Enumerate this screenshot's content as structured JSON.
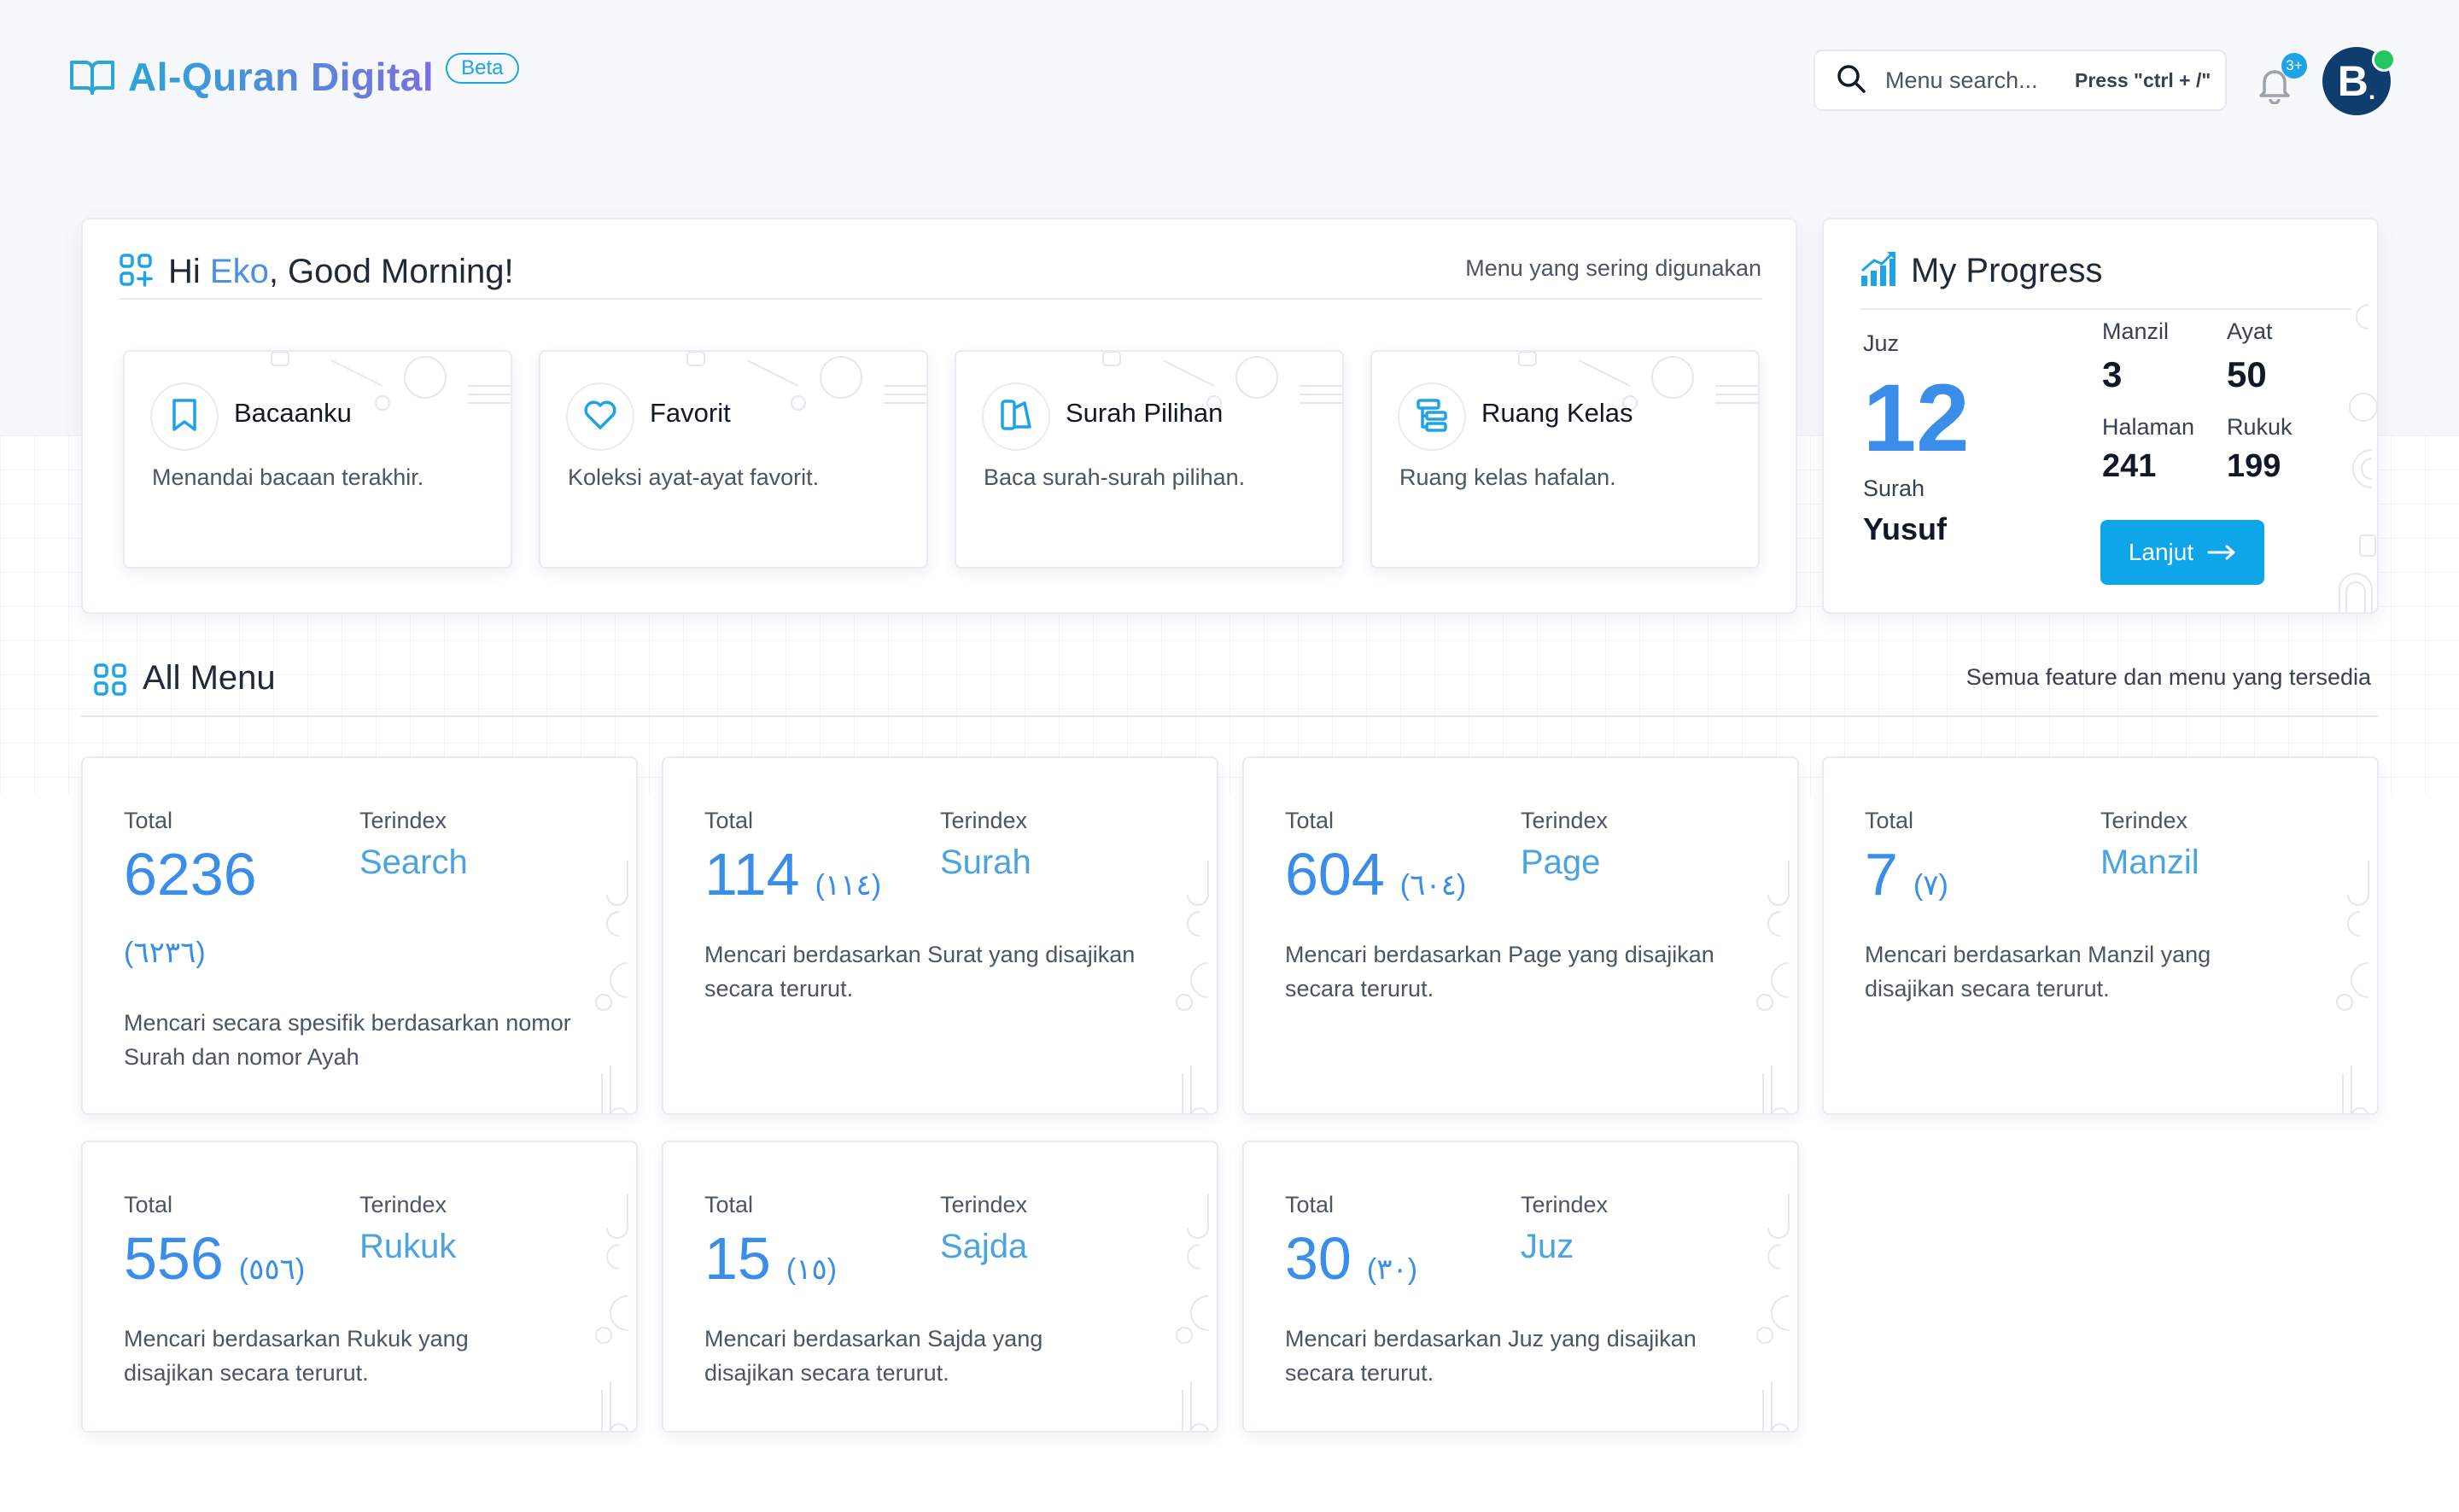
{
  "brand": {
    "title": "Al-Quran Digital",
    "badge": "Beta"
  },
  "search": {
    "placeholder": "Menu search...",
    "hint": "Press \"ctrl + /\""
  },
  "notifications": {
    "badge": "3+"
  },
  "user": {
    "avatar_letter": "B"
  },
  "greeting": {
    "prefix": "Hi ",
    "name": "Eko",
    "suffix": ", Good Morning!",
    "subtitle": "Menu yang sering digunakan",
    "items": [
      {
        "title": "Bacaanku",
        "desc": "Menandai bacaan terakhir.",
        "icon": "bookmark-icon"
      },
      {
        "title": "Favorit",
        "desc": "Koleksi ayat-ayat favorit.",
        "icon": "heart-icon"
      },
      {
        "title": "Surah Pilihan",
        "desc": "Baca surah-surah pilihan.",
        "icon": "book-open-icon"
      },
      {
        "title": "Ruang Kelas",
        "desc": "Ruang kelas hafalan.",
        "icon": "classroom-icon"
      }
    ]
  },
  "progress": {
    "title": "My Progress",
    "juz_label": "Juz",
    "juz_value": "12",
    "surah_label": "Surah",
    "surah_value": "Yusuf",
    "manzil_label": "Manzil",
    "manzil_value": "3",
    "ayat_label": "Ayat",
    "ayat_value": "50",
    "halaman_label": "Halaman",
    "halaman_value": "241",
    "rukuk_label": "Rukuk",
    "rukuk_value": "199",
    "button": "Lanjut"
  },
  "all_menu": {
    "title": "All Menu",
    "subtitle": "Semua feature dan menu yang tersedia",
    "total_label": "Total",
    "index_label": "Terindex",
    "cards": [
      {
        "total": "6236",
        "arabic": "(٦٢٣٦)",
        "index": "Search",
        "desc": "Mencari secara spesifik berdasarkan nomor Surah dan nomor Ayah"
      },
      {
        "total": "114",
        "arabic": "(١١٤)",
        "index": "Surah",
        "desc": "Mencari berdasarkan Surat yang disajikan secara terurut."
      },
      {
        "total": "604",
        "arabic": "(٦٠٤)",
        "index": "Page",
        "desc": "Mencari berdasarkan Page yang disajikan secara terurut."
      },
      {
        "total": "7",
        "arabic": "(٧)",
        "index": "Manzil",
        "desc": "Mencari berdasarkan Manzil yang disajikan secara terurut."
      },
      {
        "total": "556",
        "arabic": "(٥٥٦)",
        "index": "Rukuk",
        "desc": "Mencari berdasarkan Rukuk yang disajikan secara terurut."
      },
      {
        "total": "15",
        "arabic": "(١٥)",
        "index": "Sajda",
        "desc": "Mencari berdasarkan Sajda yang disajikan secara terurut."
      },
      {
        "total": "30",
        "arabic": "(٣٠)",
        "index": "Juz",
        "desc": "Mencari berdasarkan Juz yang disajikan secara terurut."
      }
    ]
  }
}
